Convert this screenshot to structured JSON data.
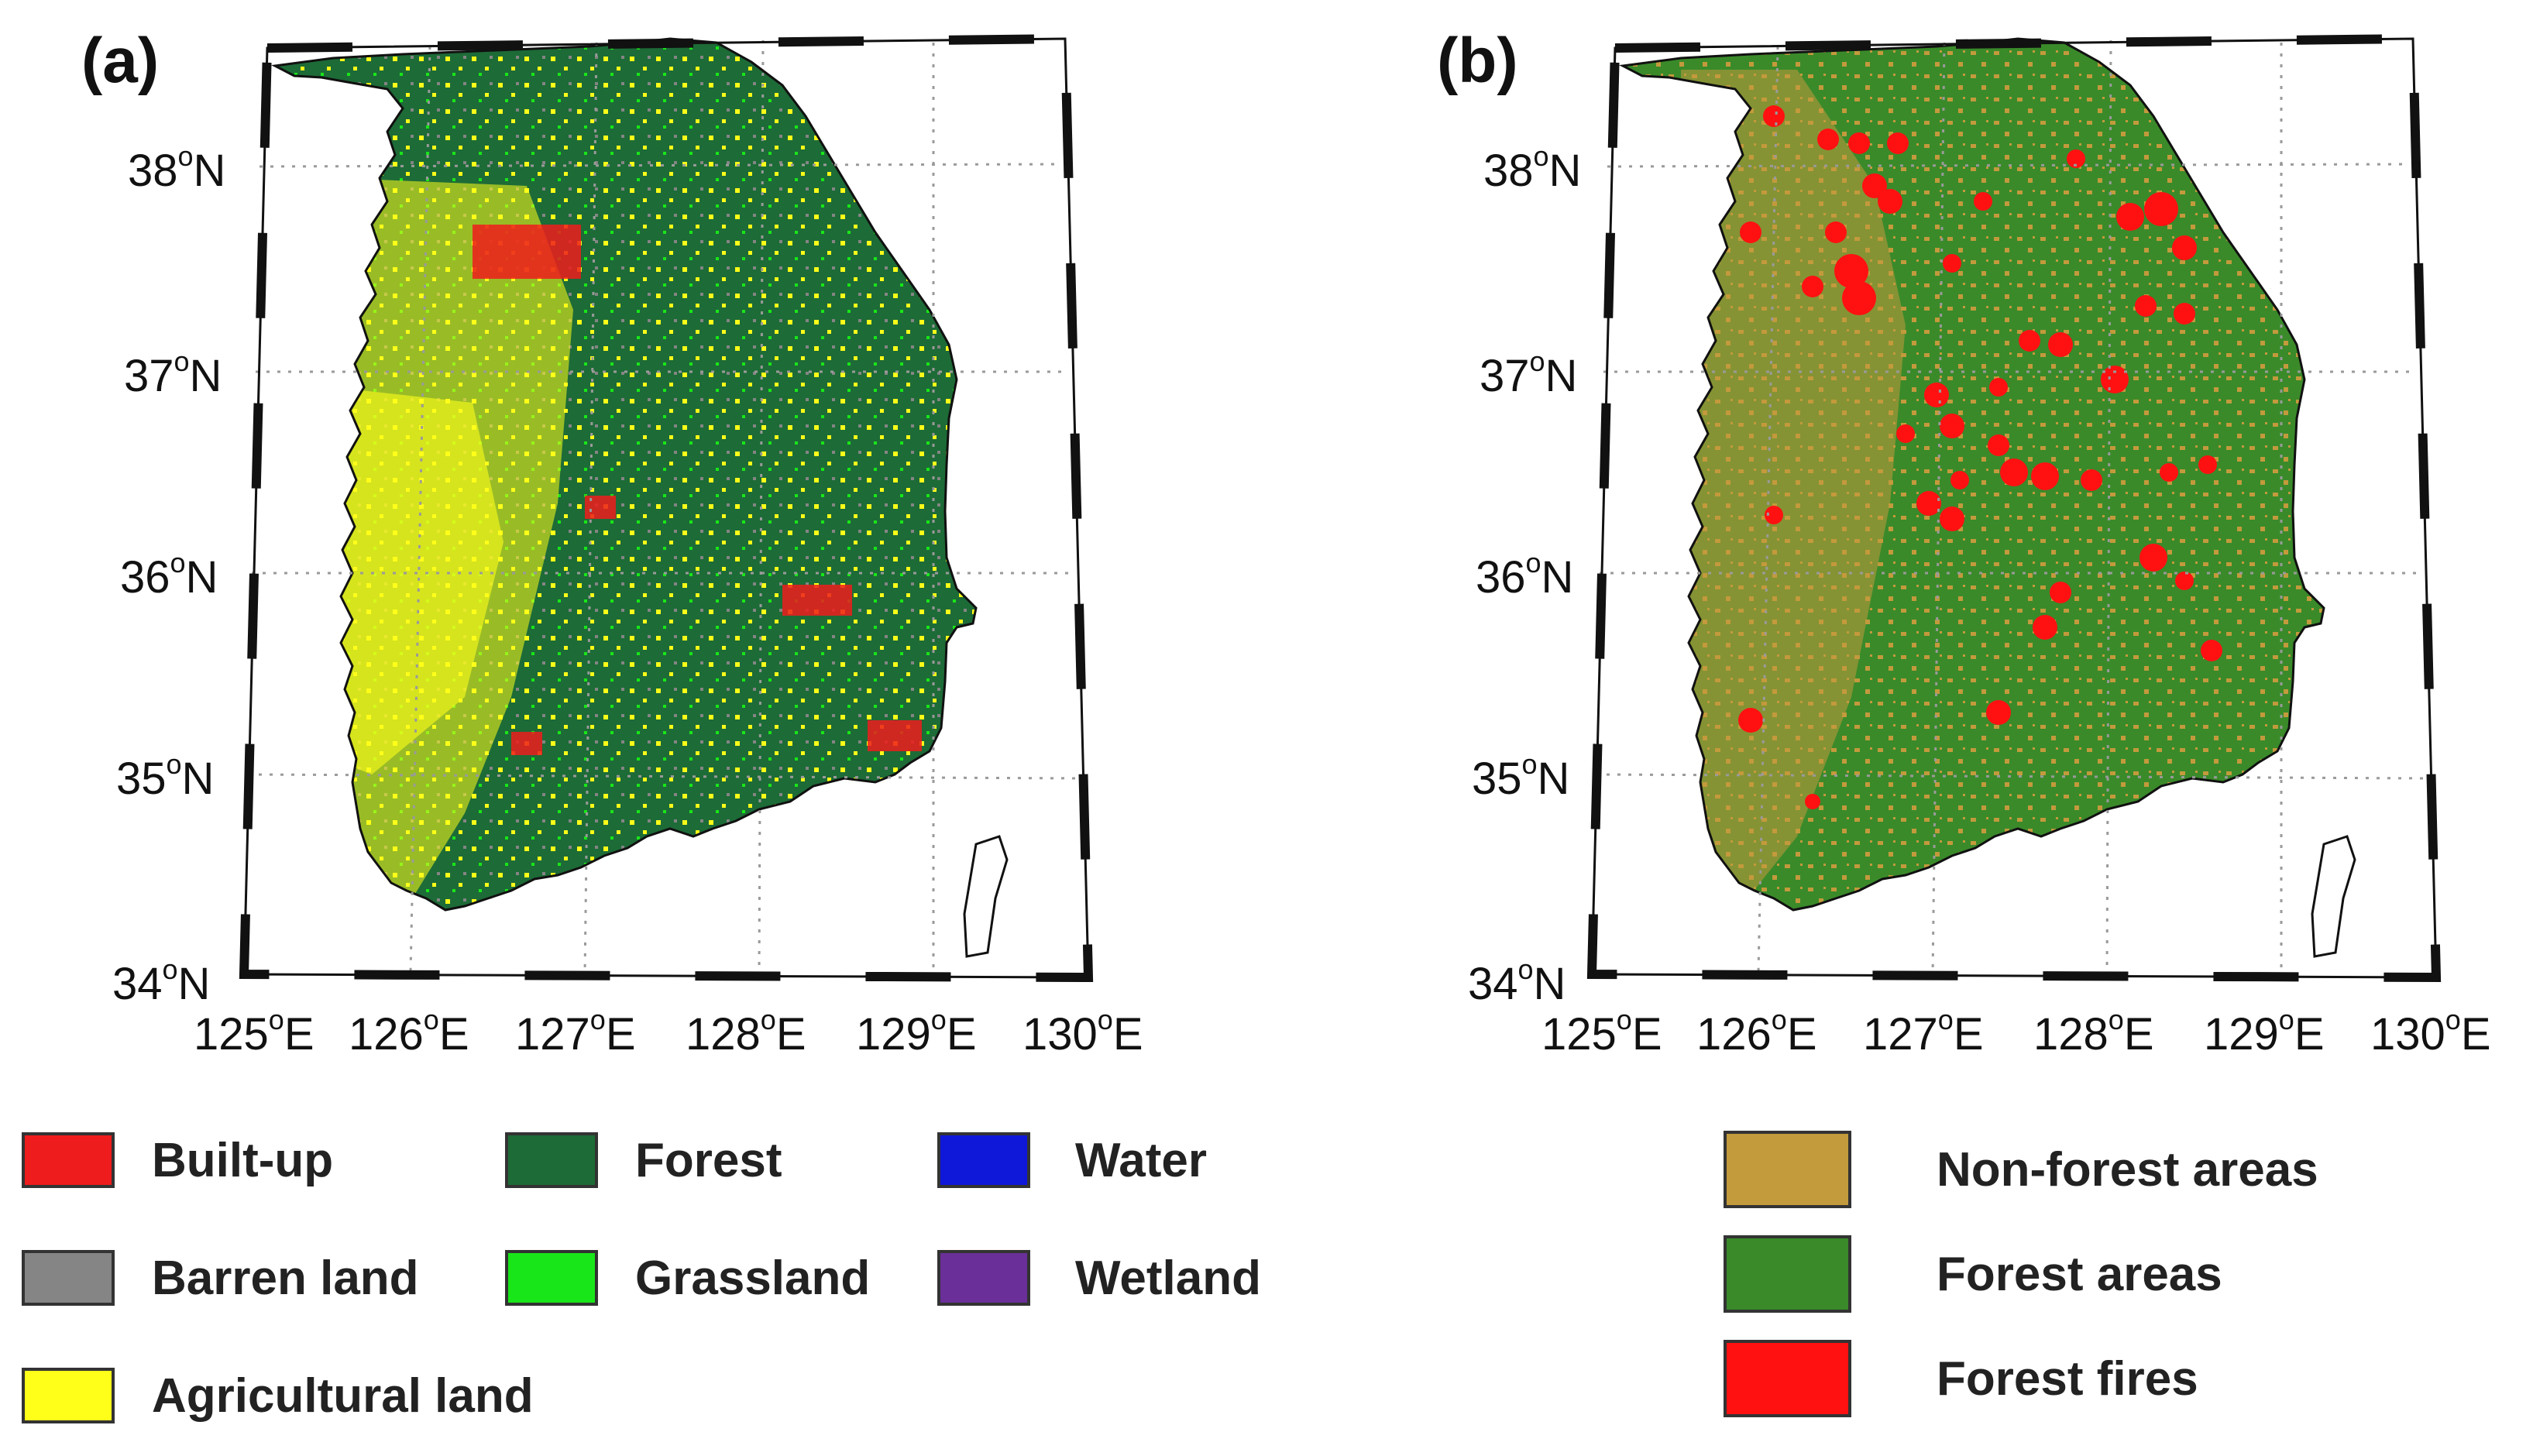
{
  "panels": [
    {
      "id": "a",
      "label": "(a)",
      "lat_labels": [
        "38",
        "37",
        "36",
        "35",
        "34"
      ],
      "lat_suffix": "N",
      "lon_labels": [
        "125",
        "126",
        "127",
        "128",
        "129",
        "130"
      ],
      "lon_suffix": "E",
      "degree_symbol": "o",
      "legend": [
        {
          "label": "Built-up",
          "color": "#ee1c1c"
        },
        {
          "label": "Forest",
          "color": "#1d6b37"
        },
        {
          "label": "Water",
          "color": "#0f17d9"
        },
        {
          "label": "Barren land",
          "color": "#858585"
        },
        {
          "label": "Grassland",
          "color": "#19e619"
        },
        {
          "label": "Wetland",
          "color": "#6a2f98"
        },
        {
          "label": "Agricultural land",
          "color": "#ffff19"
        }
      ]
    },
    {
      "id": "b",
      "label": "(b)",
      "lat_labels": [
        "38",
        "37",
        "36",
        "35",
        "34"
      ],
      "lat_suffix": "N",
      "lon_labels": [
        "125",
        "126",
        "127",
        "128",
        "129",
        "130"
      ],
      "lon_suffix": "E",
      "degree_symbol": "o",
      "legend": [
        {
          "label": "Non-forest areas",
          "color": "#c39a3c"
        },
        {
          "label": "Forest areas",
          "color": "#3a8a2a"
        },
        {
          "label": "Forest fires",
          "color": "#ff1111"
        }
      ]
    }
  ],
  "colors": {
    "coast": "#111111",
    "grid": "#9a9a9a",
    "frame": "#111111"
  }
}
